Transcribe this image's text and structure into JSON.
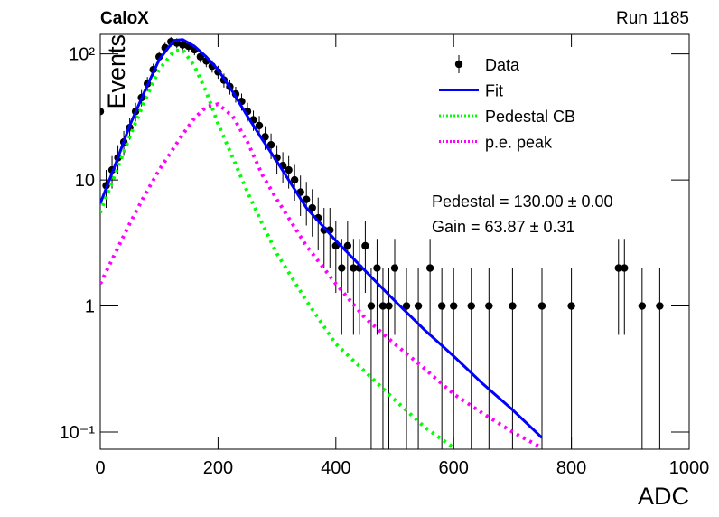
{
  "chart_data": {
    "type": "line",
    "title": "CaloX",
    "subtitle": "Run 1185",
    "x_label": "ADC",
    "y_label": "Events",
    "log_y": true,
    "xlim": [
      0,
      1000
    ],
    "xticks": [
      0,
      200,
      400,
      600,
      800,
      1000
    ],
    "ylim": [
      0.073,
      143
    ],
    "yticks": [
      {
        "value": 0.1,
        "label": "10⁻¹"
      },
      1,
      10,
      {
        "value": 100,
        "label": "10²"
      }
    ],
    "legend": "upper right",
    "annotations": [
      "Pedestal = 130.00 ± 0.00",
      "Gain = 63.87 ± 0.31"
    ],
    "data": {
      "name": "Data",
      "color": "#000000",
      "x": [
        0,
        10,
        20,
        30,
        40,
        50,
        60,
        70,
        80,
        90,
        100,
        110,
        120,
        130,
        140,
        150,
        160,
        170,
        180,
        190,
        200,
        210,
        220,
        230,
        240,
        250,
        260,
        270,
        280,
        290,
        300,
        310,
        320,
        330,
        340,
        350,
        360,
        370,
        380,
        390,
        400,
        410,
        420,
        430,
        440,
        450,
        460,
        470,
        480,
        490,
        500,
        520,
        540,
        560,
        580,
        600,
        630,
        660,
        700,
        750,
        800,
        880,
        890,
        920,
        950
      ],
      "values": [
        35,
        9,
        12,
        15,
        20,
        26,
        35,
        45,
        58,
        75,
        95,
        112,
        125,
        122,
        118,
        115,
        108,
        95,
        88,
        80,
        72,
        62,
        55,
        48,
        42,
        35,
        30,
        27,
        22,
        19,
        15,
        13,
        12,
        10,
        8,
        7,
        6,
        5,
        4,
        4,
        3,
        2,
        3,
        2,
        2,
        3,
        1,
        2,
        1,
        1,
        2,
        1,
        1,
        2,
        1,
        1,
        1,
        1,
        1,
        1,
        1,
        2,
        2,
        1,
        1
      ],
      "errors": [
        5.92,
        3,
        3.46,
        3.87,
        4.47,
        5.1,
        5.92,
        6.71,
        7.62,
        8.66,
        9.75,
        10.58,
        11.18,
        11.05,
        10.86,
        10.72,
        10.39,
        9.75,
        9.38,
        8.94,
        8.49,
        7.87,
        7.42,
        6.93,
        6.48,
        5.92,
        5.48,
        5.2,
        4.69,
        4.36,
        3.87,
        3.61,
        3.46,
        3.16,
        2.83,
        2.65,
        2.45,
        2.24,
        2,
        2,
        1.73,
        1.41,
        1.73,
        1.41,
        1.41,
        1.73,
        1,
        1.41,
        1,
        1,
        1.41,
        1,
        1,
        1.41,
        1,
        1,
        1,
        1,
        1,
        1,
        1,
        1.41,
        1.41,
        1,
        1
      ]
    },
    "curve_x": [
      0,
      25,
      50,
      75,
      100,
      125,
      140,
      160,
      180,
      200,
      225,
      250,
      275,
      300,
      350,
      400,
      450,
      500,
      550,
      600,
      650,
      700,
      750
    ],
    "series": [
      {
        "name": "Fit",
        "color": "#0000ff",
        "style": "solid",
        "values": [
          6.5,
          13,
          27,
          50,
          90,
          128,
          130,
          115,
          95,
          75,
          50,
          32,
          21,
          14,
          6,
          3.3,
          1.9,
          1.1,
          0.65,
          0.4,
          0.24,
          0.15,
          0.09
        ]
      },
      {
        "name": "Pedestal CB",
        "color": "#00ff00",
        "style": "dotted",
        "values": [
          5.5,
          11,
          22,
          42,
          75,
          105,
          108,
          80,
          50,
          28,
          15,
          8,
          4.5,
          2.6,
          1.1,
          0.5,
          0.3,
          0.18,
          0.11,
          0.075,
          null,
          null,
          null
        ]
      },
      {
        "name": "p.e. peak",
        "color": "#ff00ff",
        "style": "dotted",
        "values": [
          1.5,
          2.6,
          4.5,
          7.5,
          12,
          18,
          23,
          31,
          38,
          40,
          32,
          20,
          11,
          7,
          3,
          1.5,
          0.8,
          0.5,
          0.32,
          0.2,
          0.14,
          0.1,
          0.075
        ]
      }
    ]
  }
}
